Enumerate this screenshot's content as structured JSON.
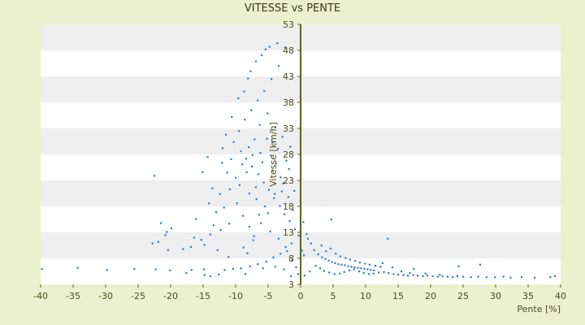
{
  "chart_data": {
    "type": "scatter",
    "title": "VITESSE vs PENTE",
    "xlabel": "Pente [%]",
    "ylabel": "Vitesse [km/h]",
    "xlim": [
      -40,
      40
    ],
    "ylim": [
      3,
      53
    ],
    "x_ticks": [
      "-40",
      "-35",
      "-30",
      "-25",
      "-20",
      "-15",
      "-10",
      "-5",
      "0",
      "5",
      "10",
      "15",
      "20",
      "25",
      "30",
      "35",
      "40"
    ],
    "y_ticks": [
      "3",
      "8",
      "13",
      "18",
      "23",
      "28",
      "33",
      "38",
      "43",
      "48",
      "53"
    ],
    "grid": "alternating horizontal bands",
    "legend": "none",
    "colors": {
      "background": "#ebf1cf",
      "plot": "#ffffff",
      "band": "#eeeeee",
      "points": "#2f7bd0",
      "axis": "#5c6600"
    },
    "series": [
      {
        "points": [
          [
            -39.8,
            6.0
          ],
          [
            -34.3,
            6.2
          ],
          [
            -29.8,
            5.8
          ],
          [
            -25.6,
            6.0
          ],
          [
            -22.3,
            5.9
          ],
          [
            -20.1,
            5.7
          ],
          [
            -16.8,
            5.8
          ],
          [
            -14.9,
            5.9
          ],
          [
            -22.5,
            23.9
          ],
          [
            -21.5,
            14.8
          ],
          [
            -20.6,
            13.1
          ],
          [
            -19.9,
            13.8
          ],
          [
            -20.8,
            12.5
          ],
          [
            -21.9,
            11.2
          ],
          [
            -22.8,
            10.9
          ],
          [
            -20.4,
            9.6
          ],
          [
            -18.1,
            9.8
          ],
          [
            -16.9,
            10.2
          ],
          [
            -16.4,
            12.0
          ],
          [
            -15.3,
            11.6
          ],
          [
            -14.8,
            10.6
          ],
          [
            -13.9,
            12.6
          ],
          [
            -12.8,
            9.6
          ],
          [
            -13.4,
            14.4
          ],
          [
            -13.0,
            16.9
          ],
          [
            -12.4,
            20.4
          ],
          [
            -11.8,
            17.8
          ],
          [
            -13.6,
            21.5
          ],
          [
            -15.1,
            24.6
          ],
          [
            -14.3,
            27.5
          ],
          [
            -12.1,
            26.4
          ],
          [
            -11.3,
            24.5
          ],
          [
            -10.7,
            27.1
          ],
          [
            -12.0,
            29.2
          ],
          [
            -11.5,
            31.8
          ],
          [
            -10.6,
            35.2
          ],
          [
            -9.6,
            38.8
          ],
          [
            -8.7,
            40.1
          ],
          [
            -8.1,
            42.6
          ],
          [
            -7.7,
            44.0
          ],
          [
            -6.9,
            45.9
          ],
          [
            -6.0,
            47.1
          ],
          [
            -5.4,
            48.2
          ],
          [
            -4.8,
            48.7
          ],
          [
            -3.6,
            49.4
          ],
          [
            -2.4,
            48.6
          ],
          [
            -3.4,
            45.0
          ],
          [
            -4.5,
            42.5
          ],
          [
            -5.6,
            40.2
          ],
          [
            -6.6,
            38.4
          ],
          [
            -7.6,
            36.5
          ],
          [
            -8.6,
            34.7
          ],
          [
            -9.5,
            32.5
          ],
          [
            -10.3,
            30.4
          ],
          [
            -9.2,
            28.6
          ],
          [
            -8.4,
            27.2
          ],
          [
            -7.5,
            25.7
          ],
          [
            -6.5,
            24.2
          ],
          [
            -5.7,
            22.6
          ],
          [
            -4.9,
            21.2
          ],
          [
            -4.1,
            19.6
          ],
          [
            -3.2,
            18.1
          ],
          [
            -2.5,
            16.5
          ],
          [
            -1.7,
            15.2
          ],
          [
            -0.9,
            13.6
          ],
          [
            -0.3,
            12.4
          ],
          [
            -1.4,
            10.9
          ],
          [
            -2.3,
            10.2
          ],
          [
            -3.1,
            8.9
          ],
          [
            -4.2,
            8.2
          ],
          [
            -5.3,
            7.4
          ],
          [
            -6.6,
            6.9
          ],
          [
            -7.8,
            6.5
          ],
          [
            -9.2,
            6.1
          ],
          [
            -10.4,
            6.0
          ],
          [
            -11.7,
            5.8
          ],
          [
            -8.8,
            10.1
          ],
          [
            -7.2,
            12.3
          ],
          [
            -6.1,
            14.8
          ],
          [
            -5.0,
            16.7
          ],
          [
            -4.0,
            20.4
          ],
          [
            -3.1,
            23.6
          ],
          [
            -2.2,
            26.8
          ],
          [
            -1.6,
            29.5
          ],
          [
            -2.8,
            31.4
          ],
          [
            -3.9,
            33.2
          ],
          [
            -5.1,
            35.9
          ],
          [
            -6.3,
            33.7
          ],
          [
            -7.1,
            30.9
          ],
          [
            -8.0,
            29.4
          ],
          [
            -9.0,
            26.1
          ],
          [
            -10.0,
            23.5
          ],
          [
            -10.9,
            21.3
          ],
          [
            -9.8,
            18.6
          ],
          [
            -8.9,
            16.2
          ],
          [
            -7.9,
            14.1
          ],
          [
            -6.8,
            19.4
          ],
          [
            -5.9,
            26.5
          ],
          [
            -4.6,
            27.8
          ],
          [
            -3.5,
            29.1
          ],
          [
            -2.7,
            22.4
          ],
          [
            -1.9,
            19.8
          ],
          [
            -1.2,
            17.3
          ],
          [
            -4.4,
            24.9
          ],
          [
            -6.2,
            28.3
          ],
          [
            -7.4,
            27.9
          ],
          [
            -8.3,
            24.6
          ],
          [
            -9.4,
            22.1
          ],
          [
            -5.2,
            31.0
          ],
          [
            -4.3,
            30.3
          ],
          [
            -6.9,
            21.7
          ],
          [
            -7.9,
            20.5
          ],
          [
            -3.8,
            26.2
          ],
          [
            -2.9,
            20.9
          ],
          [
            -5.5,
            18.0
          ],
          [
            -6.4,
            16.4
          ],
          [
            -7.3,
            11.5
          ],
          [
            -8.2,
            9.0
          ],
          [
            -4.7,
            13.2
          ],
          [
            -3.4,
            11.8
          ],
          [
            -2.1,
            9.4
          ],
          [
            -1.3,
            7.7
          ],
          [
            -0.7,
            6.3
          ],
          [
            -2.6,
            5.9
          ],
          [
            -3.9,
            6.4
          ],
          [
            -5.8,
            6.1
          ],
          [
            -1.0,
            21.0
          ],
          [
            -1.8,
            25.2
          ],
          [
            0.4,
            15.0
          ],
          [
            0.9,
            12.7
          ],
          [
            1.6,
            10.9
          ],
          [
            2.1,
            9.6
          ],
          [
            2.7,
            8.8
          ],
          [
            3.3,
            8.2
          ],
          [
            3.8,
            7.9
          ],
          [
            4.3,
            7.6
          ],
          [
            4.8,
            7.3
          ],
          [
            5.3,
            7.1
          ],
          [
            5.8,
            6.9
          ],
          [
            6.3,
            6.8
          ],
          [
            6.8,
            6.7
          ],
          [
            7.3,
            6.5
          ],
          [
            7.8,
            6.4
          ],
          [
            8.3,
            6.3
          ],
          [
            8.8,
            6.2
          ],
          [
            9.3,
            6.1
          ],
          [
            9.8,
            6.0
          ],
          [
            10.3,
            5.9
          ],
          [
            10.8,
            5.8
          ],
          [
            11.3,
            5.7
          ],
          [
            3.2,
            10.5
          ],
          [
            3.9,
            9.4
          ],
          [
            4.6,
            9.9
          ],
          [
            5.4,
            8.9
          ],
          [
            6.1,
            8.4
          ],
          [
            6.9,
            8.1
          ],
          [
            7.6,
            7.8
          ],
          [
            8.4,
            7.5
          ],
          [
            9.1,
            7.2
          ],
          [
            9.9,
            7.0
          ],
          [
            10.6,
            6.8
          ],
          [
            11.5,
            6.6
          ],
          [
            12.3,
            6.4
          ],
          [
            3.0,
            6.1
          ],
          [
            3.6,
            5.6
          ],
          [
            4.4,
            5.3
          ],
          [
            5.2,
            5.0
          ],
          [
            6.0,
            5.1
          ],
          [
            6.7,
            5.4
          ],
          [
            7.5,
            5.7
          ],
          [
            8.2,
            5.9
          ],
          [
            9.0,
            5.5
          ],
          [
            9.7,
            5.2
          ],
          [
            10.5,
            5.0
          ],
          [
            11.2,
            5.1
          ],
          [
            12.0,
            5.3
          ],
          [
            12.8,
            5.4
          ],
          [
            13.5,
            5.2
          ],
          [
            14.3,
            5.0
          ],
          [
            15.0,
            4.9
          ],
          [
            15.8,
            4.8
          ],
          [
            16.5,
            4.7
          ],
          [
            17.3,
            4.8
          ],
          [
            18.0,
            4.7
          ],
          [
            18.8,
            4.6
          ],
          [
            19.5,
            4.7
          ],
          [
            20.3,
            4.6
          ],
          [
            21.1,
            4.5
          ],
          [
            21.8,
            4.6
          ],
          [
            22.6,
            4.5
          ],
          [
            23.4,
            4.4
          ],
          [
            24.1,
            4.6
          ],
          [
            25.0,
            4.5
          ],
          [
            26.2,
            4.4
          ],
          [
            27.3,
            4.5
          ],
          [
            28.6,
            4.4
          ],
          [
            29.9,
            4.4
          ],
          [
            31.2,
            4.5
          ],
          [
            32.3,
            4.3
          ],
          [
            34.0,
            4.4
          ],
          [
            36.0,
            4.3
          ],
          [
            38.4,
            4.4
          ],
          [
            39.1,
            4.6
          ],
          [
            13.4,
            11.8
          ],
          [
            4.7,
            15.5
          ],
          [
            24.3,
            6.5
          ],
          [
            27.6,
            6.8
          ],
          [
            17.4,
            6.0
          ],
          [
            14.1,
            6.3
          ],
          [
            12.6,
            7.1
          ],
          [
            15.5,
            5.5
          ],
          [
            16.8,
            5.2
          ],
          [
            19.2,
            5.1
          ],
          [
            21.4,
            4.9
          ],
          [
            2.3,
            6.6
          ],
          [
            1.4,
            5.5
          ],
          [
            0.6,
            4.7
          ],
          [
            0.2,
            9.5
          ],
          [
            1.1,
            11.8
          ],
          [
            0.5,
            8.6
          ],
          [
            -0.4,
            5.0
          ],
          [
            -1.5,
            4.6
          ],
          [
            -8.5,
            5.0
          ],
          [
            -12.6,
            4.9
          ],
          [
            -13.9,
            4.6
          ],
          [
            -14.8,
            4.8
          ],
          [
            -17.6,
            5.2
          ],
          [
            -11.1,
            8.3
          ],
          [
            -12.3,
            13.5
          ],
          [
            -16.1,
            15.6
          ],
          [
            -14.1,
            18.6
          ],
          [
            -11.0,
            14.7
          ]
        ]
      }
    ]
  }
}
